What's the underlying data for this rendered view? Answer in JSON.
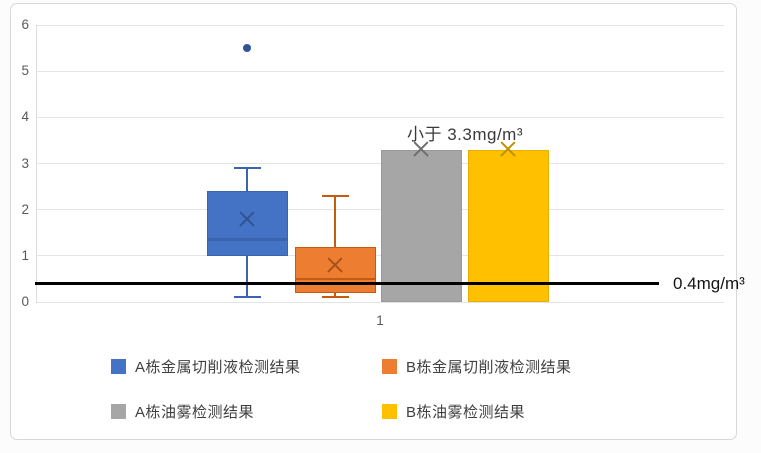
{
  "chart": {
    "x_axis": {
      "category": "1"
    },
    "y_axis": {
      "tick_labels": [
        "0",
        "1",
        "2",
        "3",
        "4",
        "5",
        "6"
      ]
    },
    "annotations": {
      "upper_limit": "小于 3.3mg/m³",
      "reference_value": "0.4mg/m³"
    }
  },
  "chart_data": {
    "type": "boxplot",
    "title": "",
    "categories": [
      "1"
    ],
    "ylim": [
      0,
      6
    ],
    "y_ticks": [
      0,
      1,
      2,
      3,
      4,
      5,
      6
    ],
    "grid": true,
    "legend_position": "bottom",
    "reference_line": {
      "value": 0.4,
      "label": "0.4mg/m³",
      "color": "#000000"
    },
    "annotation": {
      "text": "小于 3.3mg/m³",
      "value": 3.3,
      "applies_to": [
        "A栋油雾检测结果",
        "B栋油雾检测结果"
      ]
    },
    "series": [
      {
        "name": "A栋金属切削液检测结果",
        "plot_as": "box",
        "color": "#4472C4",
        "line_color": "#3B63AE",
        "marker_color": "#2F5496",
        "min": 0.1,
        "q1": 1.0,
        "median": 1.35,
        "q3": 2.4,
        "max": 2.9,
        "mean": 1.8,
        "outliers": [
          5.5
        ]
      },
      {
        "name": "B栋金属切削液检测结果",
        "plot_as": "box",
        "color": "#ED7D31",
        "line_color": "#C55A11",
        "marker_color": "#A85217",
        "min": 0.1,
        "q1": 0.2,
        "median": 0.5,
        "q3": 1.2,
        "max": 2.3,
        "mean": 0.8,
        "outliers": []
      },
      {
        "name": "A栋油雾检测结果",
        "plot_as": "bar",
        "color": "#A6A6A6",
        "line_color": "#9A9A9A",
        "marker_color": "#6E6E6E",
        "min": 0,
        "q1": 0,
        "median": 3.3,
        "q3": 3.3,
        "max": 3.3,
        "mean": 3.3,
        "outliers": []
      },
      {
        "name": "B栋油雾检测结果",
        "plot_as": "bar",
        "color": "#FFC000",
        "line_color": "#E9AF00",
        "marker_color": "#BF9000",
        "min": 0,
        "q1": 0,
        "median": 3.3,
        "q3": 3.3,
        "max": 3.3,
        "mean": 3.3,
        "outliers": []
      }
    ]
  },
  "legend": {
    "items": [
      {
        "label": "A栋金属切削液检测结果",
        "color": "#4472C4"
      },
      {
        "label": "B栋金属切削液检测结果",
        "color": "#ED7D31"
      },
      {
        "label": "A栋油雾检测结果",
        "color": "#A6A6A6"
      },
      {
        "label": "B栋油雾检测结果",
        "color": "#FFC000"
      }
    ]
  }
}
